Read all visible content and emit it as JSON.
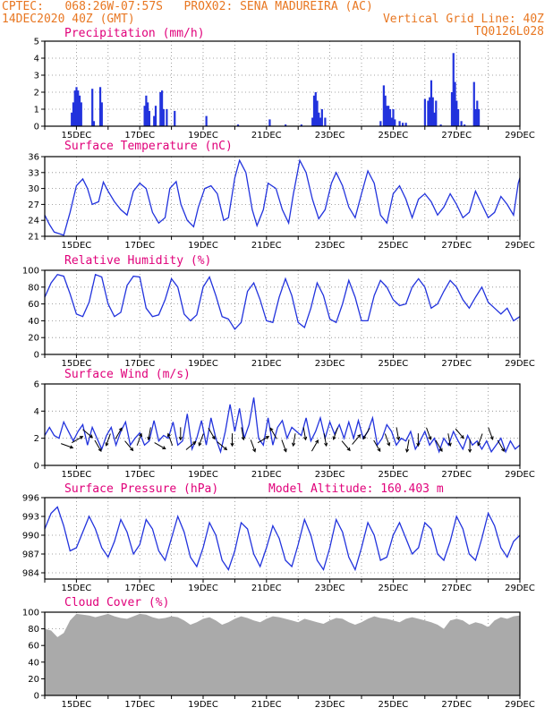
{
  "header": {
    "line1_left": "CPTEC:   068:26W-07:57S   PROX02: SENA MADUREIRA (AC)",
    "line2_left": "14DEC2020 40Z (GMT)",
    "line2_right": "Vertical Grid Line: 40Z",
    "line3_right": "TQ0126L028"
  },
  "colors": {
    "header": "#e87722",
    "title": "#e0007a",
    "series": "#2233dd",
    "cloud": "#aaaaaa",
    "arrow": "#000000"
  },
  "x_axis": {
    "start_day": 14,
    "end_day": 29,
    "tick_days": [
      15,
      17,
      19,
      21,
      23,
      25,
      27,
      29
    ],
    "tick_labels": [
      "15DEC",
      "17DEC",
      "19DEC",
      "21DEC",
      "23DEC",
      "25DEC",
      "27DEC",
      "29DEC"
    ]
  },
  "chart_data": [
    {
      "type": "bar",
      "title": "Precipitation (mm/h)",
      "ylim": [
        0,
        5
      ],
      "yticks": [
        0,
        1,
        2,
        3,
        4,
        5
      ],
      "x": [
        14.85,
        14.9,
        14.95,
        15.0,
        15.05,
        15.1,
        15.15,
        15.5,
        15.55,
        15.75,
        15.8,
        17.15,
        17.2,
        17.25,
        17.3,
        17.45,
        17.5,
        17.65,
        17.7,
        17.75,
        17.85,
        18.1,
        19.1,
        20.1,
        21.1,
        21.6,
        22.1,
        22.45,
        22.5,
        22.55,
        22.6,
        22.65,
        22.7,
        22.75,
        22.85,
        24.6,
        24.7,
        24.75,
        24.8,
        24.85,
        24.9,
        24.95,
        25.0,
        25.05,
        25.2,
        25.3,
        25.4,
        26.0,
        26.1,
        26.15,
        26.2,
        26.25,
        26.3,
        26.35,
        26.5,
        26.85,
        26.9,
        26.95,
        27.0,
        27.05,
        27.15,
        27.25,
        27.55,
        27.6,
        27.65,
        27.7
      ],
      "values": [
        0.8,
        1.4,
        2.1,
        2.3,
        2.1,
        1.8,
        1.4,
        2.2,
        0.3,
        2.3,
        1.4,
        1.2,
        1.8,
        1.4,
        0.9,
        0.6,
        1.2,
        2.0,
        2.1,
        1.0,
        1.0,
        0.9,
        0.6,
        0.1,
        0.4,
        0.1,
        0.1,
        0.5,
        1.8,
        2.0,
        1.5,
        0.8,
        0.5,
        1.0,
        0.5,
        0.3,
        2.4,
        1.8,
        1.2,
        1.2,
        1.0,
        0.5,
        1.0,
        0.4,
        0.3,
        0.2,
        0.2,
        1.6,
        1.5,
        1.7,
        2.7,
        1.7,
        0.8,
        1.5,
        0.1,
        2.0,
        4.3,
        2.6,
        1.5,
        1.0,
        0.3,
        0.1,
        2.6,
        1.0,
        1.5,
        1.0
      ]
    },
    {
      "type": "line",
      "title": "Surface Temperature (nC)",
      "ylim": [
        21,
        36
      ],
      "yticks": [
        21,
        24,
        27,
        30,
        33,
        36
      ],
      "x": [
        14.0,
        14.15,
        14.3,
        14.45,
        14.6,
        14.8,
        15.0,
        15.2,
        15.35,
        15.5,
        15.7,
        15.85,
        16.0,
        16.2,
        16.4,
        16.6,
        16.8,
        17.0,
        17.2,
        17.4,
        17.6,
        17.8,
        17.95,
        18.15,
        18.3,
        18.5,
        18.7,
        18.85,
        19.05,
        19.25,
        19.45,
        19.65,
        19.8,
        20.0,
        20.15,
        20.35,
        20.55,
        20.7,
        20.9,
        21.05,
        21.3,
        21.5,
        21.7,
        21.85,
        22.05,
        22.25,
        22.45,
        22.65,
        22.85,
        23.05,
        23.2,
        23.4,
        23.6,
        23.8,
        24.0,
        24.2,
        24.4,
        24.6,
        24.8,
        25.0,
        25.2,
        25.4,
        25.6,
        25.8,
        26.0,
        26.2,
        26.4,
        26.6,
        26.8,
        27.0,
        27.2,
        27.4,
        27.6,
        27.8,
        28.0,
        28.2,
        28.4,
        28.6,
        28.8,
        28.95,
        29.0
      ],
      "y": [
        25.0,
        23.2,
        21.8,
        21.5,
        21.2,
        25.5,
        30.5,
        31.8,
        30.0,
        27.0,
        27.5,
        31.2,
        29.5,
        27.5,
        26.0,
        25.0,
        29.5,
        31.0,
        30.0,
        25.5,
        23.5,
        24.5,
        30.0,
        31.3,
        27.0,
        24.0,
        22.8,
        26.5,
        30.0,
        30.5,
        29.0,
        24.0,
        24.5,
        32.0,
        35.3,
        33.0,
        26.0,
        23.0,
        26.0,
        31.0,
        30.0,
        26.0,
        23.5,
        29.0,
        35.3,
        33.0,
        28.0,
        24.3,
        26.0,
        31.0,
        33.0,
        30.5,
        26.5,
        24.5,
        29.0,
        33.3,
        31.0,
        25.0,
        23.5,
        29.0,
        30.5,
        28.0,
        24.5,
        28.0,
        29.0,
        27.5,
        25.0,
        26.5,
        29.0,
        27.0,
        24.5,
        25.5,
        29.5,
        27.0,
        24.5,
        25.5,
        28.5,
        27.0,
        25.0,
        31.0,
        32.0
      ]
    },
    {
      "type": "line",
      "title": "Relative Humidity (%)",
      "ylim": [
        0,
        100
      ],
      "yticks": [
        0,
        20,
        40,
        60,
        80,
        100
      ],
      "x": [
        14.0,
        14.2,
        14.4,
        14.6,
        14.8,
        15.0,
        15.2,
        15.4,
        15.6,
        15.8,
        16.0,
        16.2,
        16.4,
        16.6,
        16.8,
        17.0,
        17.2,
        17.4,
        17.6,
        17.8,
        18.0,
        18.2,
        18.4,
        18.6,
        18.8,
        19.0,
        19.2,
        19.4,
        19.6,
        19.8,
        20.0,
        20.2,
        20.4,
        20.6,
        20.8,
        21.0,
        21.2,
        21.4,
        21.6,
        21.8,
        22.0,
        22.2,
        22.4,
        22.6,
        22.8,
        23.0,
        23.2,
        23.4,
        23.6,
        23.8,
        24.0,
        24.2,
        24.4,
        24.6,
        24.8,
        25.0,
        25.2,
        25.4,
        25.6,
        25.8,
        26.0,
        26.2,
        26.4,
        26.6,
        26.8,
        27.0,
        27.2,
        27.4,
        27.6,
        27.8,
        28.0,
        28.2,
        28.4,
        28.6,
        28.8,
        29.0
      ],
      "y": [
        68,
        85,
        95,
        93,
        72,
        48,
        45,
        62,
        95,
        92,
        60,
        45,
        50,
        82,
        93,
        92,
        55,
        45,
        47,
        65,
        90,
        80,
        48,
        40,
        47,
        80,
        92,
        70,
        45,
        42,
        30,
        38,
        75,
        85,
        65,
        40,
        38,
        68,
        90,
        70,
        38,
        32,
        55,
        85,
        70,
        42,
        38,
        60,
        88,
        68,
        40,
        40,
        70,
        88,
        80,
        65,
        58,
        60,
        80,
        90,
        80,
        55,
        60,
        75,
        88,
        80,
        65,
        55,
        68,
        80,
        62,
        55,
        48,
        55,
        40,
        45
      ]
    },
    {
      "type": "line",
      "title": "Surface Wind (m/s)",
      "ylim": [
        0,
        6
      ],
      "yticks": [
        0,
        2,
        4,
        6
      ],
      "x": [
        14.0,
        14.15,
        14.3,
        14.45,
        14.6,
        14.75,
        14.9,
        15.05,
        15.2,
        15.35,
        15.5,
        15.65,
        15.8,
        15.95,
        16.1,
        16.25,
        16.4,
        16.55,
        16.7,
        16.85,
        17.0,
        17.15,
        17.3,
        17.45,
        17.6,
        17.75,
        17.9,
        18.05,
        18.2,
        18.35,
        18.5,
        18.65,
        18.8,
        18.95,
        19.1,
        19.25,
        19.4,
        19.55,
        19.7,
        19.85,
        20.0,
        20.15,
        20.3,
        20.45,
        20.6,
        20.75,
        20.9,
        21.05,
        21.2,
        21.35,
        21.5,
        21.65,
        21.8,
        21.95,
        22.1,
        22.25,
        22.4,
        22.55,
        22.7,
        22.85,
        23.0,
        23.15,
        23.3,
        23.45,
        23.6,
        23.75,
        23.9,
        24.05,
        24.2,
        24.35,
        24.5,
        24.65,
        24.8,
        24.95,
        25.1,
        25.25,
        25.4,
        25.55,
        25.7,
        25.85,
        26.0,
        26.15,
        26.3,
        26.45,
        26.6,
        26.75,
        26.9,
        27.05,
        27.2,
        27.35,
        27.5,
        27.65,
        27.8,
        27.95,
        28.1,
        28.25,
        28.4,
        28.55,
        28.7,
        28.85,
        29.0
      ],
      "y": [
        2.2,
        2.8,
        2.2,
        2.0,
        3.2,
        2.5,
        1.8,
        2.5,
        3.0,
        1.5,
        2.8,
        2.0,
        1.2,
        2.2,
        2.8,
        1.5,
        2.5,
        3.2,
        1.5,
        2.0,
        2.4,
        1.5,
        1.8,
        3.3,
        1.8,
        2.2,
        2.0,
        3.2,
        1.5,
        1.8,
        3.8,
        1.2,
        2.0,
        3.3,
        1.5,
        3.5,
        2.0,
        1.0,
        2.5,
        4.5,
        2.5,
        4.2,
        2.0,
        3.0,
        5.0,
        2.0,
        1.5,
        3.5,
        1.5,
        2.8,
        3.3,
        2.0,
        2.8,
        2.5,
        2.2,
        3.5,
        1.8,
        2.5,
        3.5,
        2.0,
        3.2,
        2.3,
        3.0,
        2.0,
        3.2,
        2.0,
        3.3,
        2.0,
        2.5,
        3.5,
        1.5,
        2.0,
        3.0,
        2.5,
        1.5,
        2.0,
        1.8,
        2.5,
        1.2,
        1.8,
        2.5,
        1.5,
        2.0,
        1.0,
        2.0,
        1.5,
        2.5,
        1.8,
        1.2,
        2.2,
        1.5,
        1.8,
        1.2,
        1.8,
        1.0,
        1.5,
        2.0,
        1.0,
        1.8,
        1.2,
        1.5
      ]
    },
    {
      "type": "line",
      "title": "Surface Pressure (hPa)",
      "annotation": "Model Altitude: 160.403 m",
      "ylim": [
        983,
        996
      ],
      "yticks": [
        984,
        987,
        990,
        993,
        996
      ],
      "x": [
        14.0,
        14.2,
        14.4,
        14.6,
        14.8,
        15.0,
        15.2,
        15.4,
        15.6,
        15.8,
        16.0,
        16.2,
        16.4,
        16.6,
        16.8,
        17.0,
        17.2,
        17.4,
        17.6,
        17.8,
        18.0,
        18.2,
        18.4,
        18.6,
        18.8,
        19.0,
        19.2,
        19.4,
        19.6,
        19.8,
        20.0,
        20.2,
        20.4,
        20.6,
        20.8,
        21.0,
        21.2,
        21.4,
        21.6,
        21.8,
        22.0,
        22.2,
        22.4,
        22.6,
        22.8,
        23.0,
        23.2,
        23.4,
        23.6,
        23.8,
        24.0,
        24.2,
        24.4,
        24.6,
        24.8,
        25.0,
        25.2,
        25.4,
        25.6,
        25.8,
        26.0,
        26.2,
        26.4,
        26.6,
        26.8,
        27.0,
        27.2,
        27.4,
        27.6,
        27.8,
        28.0,
        28.2,
        28.4,
        28.6,
        28.8,
        29.0
      ],
      "y": [
        991.0,
        993.5,
        994.5,
        991.5,
        987.5,
        988.0,
        990.5,
        993.0,
        991.0,
        988.0,
        986.5,
        989.0,
        992.5,
        990.5,
        987.0,
        988.5,
        992.5,
        991.0,
        987.5,
        986.0,
        989.5,
        993.0,
        990.5,
        986.5,
        985.0,
        988.0,
        992.0,
        990.0,
        986.0,
        984.5,
        987.5,
        992.0,
        991.0,
        987.0,
        985.0,
        988.0,
        991.5,
        989.5,
        986.0,
        985.0,
        988.5,
        992.5,
        990.0,
        986.0,
        984.5,
        988.0,
        992.5,
        990.5,
        986.5,
        984.5,
        988.0,
        992.0,
        990.0,
        986.0,
        986.5,
        990.0,
        992.0,
        989.5,
        987.0,
        988.0,
        992.0,
        991.0,
        987.0,
        986.0,
        989.0,
        993.0,
        991.0,
        987.0,
        986.0,
        989.5,
        993.5,
        991.5,
        988.0,
        986.5,
        989.0,
        990.0
      ]
    },
    {
      "type": "area",
      "title": "Cloud Cover (%)",
      "ylim": [
        0,
        100
      ],
      "yticks": [
        0,
        20,
        40,
        60,
        80,
        100
      ],
      "x": [
        14.0,
        14.2,
        14.4,
        14.6,
        14.8,
        15.0,
        15.2,
        15.4,
        15.6,
        15.8,
        16.0,
        16.2,
        16.4,
        16.6,
        16.8,
        17.0,
        17.2,
        17.4,
        17.6,
        17.8,
        18.0,
        18.2,
        18.4,
        18.6,
        18.8,
        19.0,
        19.2,
        19.4,
        19.6,
        19.8,
        20.0,
        20.2,
        20.4,
        20.6,
        20.8,
        21.0,
        21.2,
        21.4,
        21.6,
        21.8,
        22.0,
        22.2,
        22.4,
        22.6,
        22.8,
        23.0,
        23.2,
        23.4,
        23.6,
        23.8,
        24.0,
        24.2,
        24.4,
        24.6,
        24.8,
        25.0,
        25.2,
        25.4,
        25.6,
        25.8,
        26.0,
        26.2,
        26.4,
        26.6,
        26.8,
        27.0,
        27.2,
        27.4,
        27.6,
        27.8,
        28.0,
        28.2,
        28.4,
        28.6,
        28.8,
        29.0
      ],
      "y": [
        80,
        78,
        70,
        75,
        90,
        98,
        97,
        96,
        94,
        96,
        98,
        95,
        93,
        92,
        95,
        98,
        97,
        94,
        92,
        93,
        95,
        94,
        90,
        85,
        88,
        92,
        94,
        90,
        85,
        88,
        92,
        95,
        93,
        90,
        88,
        92,
        95,
        94,
        92,
        90,
        88,
        92,
        90,
        88,
        86,
        90,
        93,
        92,
        88,
        85,
        88,
        92,
        95,
        93,
        92,
        90,
        88,
        92,
        94,
        92,
        90,
        88,
        85,
        80,
        90,
        92,
        90,
        85,
        88,
        86,
        82,
        90,
        94,
        92,
        95,
        96
      ]
    }
  ]
}
